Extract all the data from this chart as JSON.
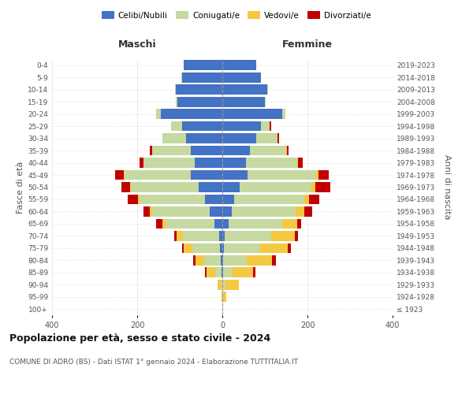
{
  "age_groups": [
    "100+",
    "95-99",
    "90-94",
    "85-89",
    "80-84",
    "75-79",
    "70-74",
    "65-69",
    "60-64",
    "55-59",
    "50-54",
    "45-49",
    "40-44",
    "35-39",
    "30-34",
    "25-29",
    "20-24",
    "15-19",
    "10-14",
    "5-9",
    "0-4"
  ],
  "birth_years": [
    "≤ 1923",
    "1924-1928",
    "1929-1933",
    "1934-1938",
    "1939-1943",
    "1944-1948",
    "1949-1953",
    "1954-1958",
    "1959-1963",
    "1964-1968",
    "1969-1973",
    "1974-1978",
    "1979-1983",
    "1984-1988",
    "1989-1993",
    "1994-1998",
    "1999-2003",
    "2004-2008",
    "2009-2013",
    "2014-2018",
    "2019-2023"
  ],
  "colors": {
    "celibi": "#4472C4",
    "coniugati": "#c5d9a0",
    "vedovi": "#f5c842",
    "divorziati": "#c00000"
  },
  "maschi": {
    "celibi": [
      0,
      0,
      0,
      2,
      3,
      5,
      8,
      18,
      30,
      40,
      55,
      75,
      65,
      75,
      85,
      95,
      145,
      105,
      110,
      95,
      90
    ],
    "coniugati": [
      0,
      0,
      2,
      15,
      40,
      65,
      85,
      115,
      135,
      155,
      160,
      155,
      120,
      90,
      55,
      25,
      10,
      5,
      2,
      1,
      0
    ],
    "vedovi": [
      0,
      2,
      10,
      20,
      20,
      20,
      15,
      8,
      5,
      3,
      2,
      1,
      0,
      0,
      0,
      0,
      0,
      0,
      0,
      0,
      0
    ],
    "divorziati": [
      0,
      0,
      0,
      3,
      5,
      5,
      5,
      15,
      15,
      25,
      20,
      20,
      10,
      5,
      0,
      0,
      0,
      0,
      0,
      0,
      0
    ]
  },
  "femmine": {
    "celibi": [
      0,
      0,
      0,
      2,
      2,
      3,
      5,
      15,
      22,
      28,
      40,
      60,
      55,
      65,
      80,
      90,
      140,
      100,
      105,
      90,
      80
    ],
    "coniugati": [
      0,
      2,
      8,
      20,
      55,
      85,
      110,
      125,
      150,
      165,
      170,
      160,
      120,
      85,
      50,
      22,
      8,
      2,
      2,
      1,
      0
    ],
    "vedovi": [
      2,
      8,
      30,
      50,
      60,
      65,
      55,
      35,
      20,
      10,
      8,
      5,
      2,
      1,
      0,
      0,
      0,
      0,
      0,
      0,
      0
    ],
    "divorziati": [
      0,
      0,
      0,
      5,
      8,
      8,
      8,
      10,
      20,
      25,
      35,
      25,
      12,
      5,
      3,
      2,
      1,
      0,
      0,
      0,
      0
    ]
  },
  "xlim": 400,
  "title": "Popolazione per età, sesso e stato civile - 2024",
  "subtitle": "COMUNE DI ADRO (BS) - Dati ISTAT 1° gennaio 2024 - Elaborazione TUTTITALIA.IT",
  "ylabel_left": "Fasce di età",
  "ylabel_right": "Anni di nascita",
  "header_maschi": "Maschi",
  "header_femmine": "Femmine",
  "legend_labels": [
    "Celibi/Nubili",
    "Coniugati/e",
    "Vedovi/e",
    "Divorziati/e"
  ],
  "background_color": "#ffffff",
  "grid_color": "#cccccc"
}
